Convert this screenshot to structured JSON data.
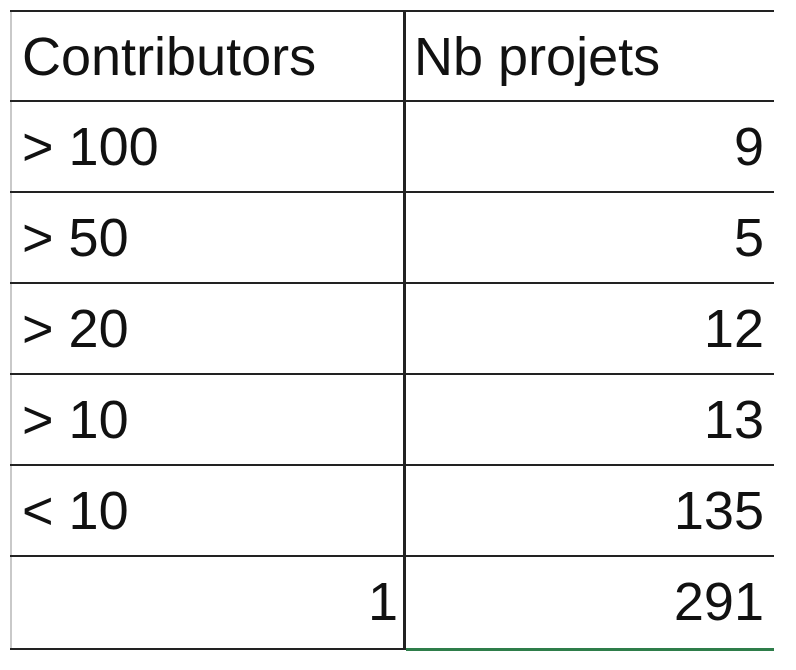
{
  "table": {
    "headers": [
      "Contributors",
      "Nb projets"
    ],
    "rows": [
      {
        "contributors": "> 100",
        "nb_projets": "9"
      },
      {
        "contributors": "> 50",
        "nb_projets": "5"
      },
      {
        "contributors": "> 20",
        "nb_projets": "12"
      },
      {
        "contributors": "> 10",
        "nb_projets": "13"
      },
      {
        "contributors": "< 10",
        "nb_projets": "135"
      },
      {
        "contributors": "1",
        "nb_projets": "291"
      }
    ]
  },
  "colors": {
    "grid": "#222222",
    "left_border": "#c9c9c9",
    "accent_underline": "#2e7d4a",
    "text": "#111111"
  }
}
